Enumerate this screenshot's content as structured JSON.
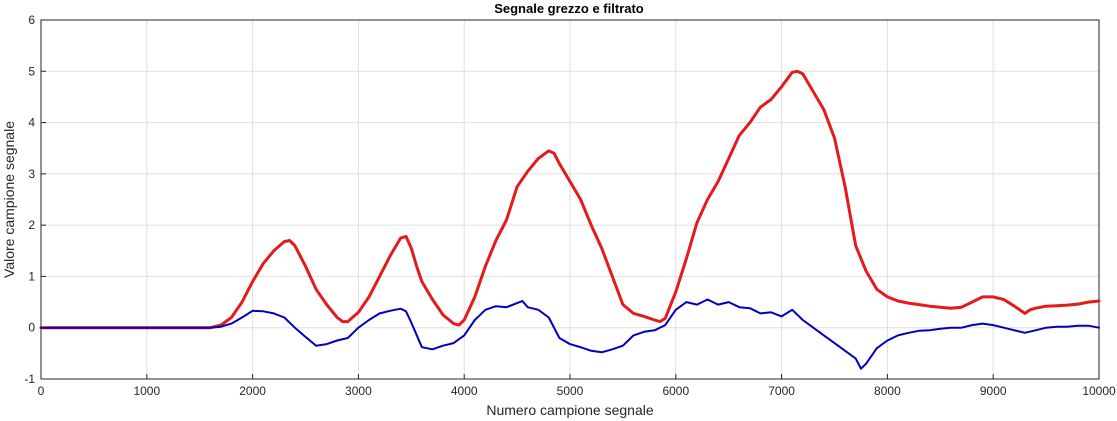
{
  "chart_data": {
    "type": "line",
    "title": "Segnale grezzo e filtrato",
    "xlabel": "Numero campione segnale",
    "ylabel": "Valore campione segnale",
    "xlim": [
      0,
      10000
    ],
    "ylim": [
      -1,
      6
    ],
    "xticks": [
      0,
      1000,
      2000,
      3000,
      4000,
      5000,
      6000,
      7000,
      8000,
      9000,
      10000
    ],
    "yticks": [
      -1,
      0,
      1,
      2,
      3,
      4,
      5,
      6
    ],
    "grid": true,
    "legend": "none",
    "series": [
      {
        "color": "#e41a1c",
        "x": [
          0,
          1600,
          1700,
          1800,
          1900,
          2000,
          2100,
          2200,
          2300,
          2350,
          2400,
          2500,
          2600,
          2700,
          2800,
          2850,
          2900,
          3000,
          3100,
          3200,
          3300,
          3400,
          3450,
          3500,
          3550,
          3600,
          3700,
          3800,
          3900,
          3950,
          4000,
          4100,
          4200,
          4300,
          4400,
          4500,
          4600,
          4700,
          4800,
          4850,
          4900,
          5000,
          5100,
          5200,
          5300,
          5400,
          5500,
          5600,
          5700,
          5800,
          5850,
          5900,
          6000,
          6100,
          6200,
          6300,
          6400,
          6500,
          6600,
          6700,
          6800,
          6900,
          7000,
          7100,
          7150,
          7200,
          7300,
          7400,
          7500,
          7600,
          7700,
          7800,
          7900,
          8000,
          8100,
          8200,
          8300,
          8400,
          8500,
          8600,
          8700,
          8800,
          8900,
          9000,
          9100,
          9200,
          9300,
          9350,
          9400,
          9500,
          9600,
          9700,
          9800,
          9900,
          10000
        ],
        "values": [
          0,
          0,
          0.05,
          0.2,
          0.5,
          0.9,
          1.25,
          1.5,
          1.68,
          1.7,
          1.6,
          1.2,
          0.75,
          0.45,
          0.2,
          0.12,
          0.12,
          0.3,
          0.6,
          1.0,
          1.4,
          1.75,
          1.78,
          1.55,
          1.2,
          0.9,
          0.55,
          0.25,
          0.08,
          0.05,
          0.15,
          0.6,
          1.2,
          1.7,
          2.1,
          2.75,
          3.05,
          3.3,
          3.45,
          3.4,
          3.2,
          2.85,
          2.5,
          2.0,
          1.55,
          1.0,
          0.45,
          0.28,
          0.22,
          0.15,
          0.12,
          0.18,
          0.7,
          1.35,
          2.05,
          2.5,
          2.85,
          3.3,
          3.75,
          4.0,
          4.3,
          4.45,
          4.7,
          4.98,
          5.0,
          4.95,
          4.6,
          4.25,
          3.7,
          2.75,
          1.6,
          1.1,
          0.75,
          0.6,
          0.52,
          0.48,
          0.45,
          0.42,
          0.4,
          0.38,
          0.4,
          0.5,
          0.6,
          0.6,
          0.55,
          0.42,
          0.28,
          0.35,
          0.38,
          0.42,
          0.43,
          0.44,
          0.46,
          0.5,
          0.52
        ]
      },
      {
        "color": "#0000bf",
        "x": [
          0,
          1600,
          1700,
          1800,
          1900,
          2000,
          2100,
          2200,
          2300,
          2400,
          2500,
          2600,
          2700,
          2800,
          2900,
          3000,
          3100,
          3200,
          3300,
          3400,
          3450,
          3500,
          3600,
          3700,
          3800,
          3900,
          4000,
          4100,
          4200,
          4300,
          4400,
          4500,
          4550,
          4600,
          4700,
          4800,
          4900,
          5000,
          5100,
          5200,
          5300,
          5400,
          5500,
          5600,
          5700,
          5800,
          5900,
          6000,
          6100,
          6200,
          6300,
          6400,
          6500,
          6600,
          6700,
          6800,
          6900,
          7000,
          7100,
          7200,
          7300,
          7400,
          7500,
          7600,
          7700,
          7750,
          7800,
          7900,
          8000,
          8100,
          8200,
          8300,
          8400,
          8500,
          8600,
          8700,
          8800,
          8900,
          9000,
          9100,
          9200,
          9300,
          9400,
          9500,
          9600,
          9700,
          9800,
          9900,
          10000
        ],
        "values": [
          0,
          0,
          0.02,
          0.08,
          0.2,
          0.33,
          0.32,
          0.28,
          0.2,
          0.0,
          -0.18,
          -0.35,
          -0.32,
          -0.25,
          -0.2,
          0.0,
          0.15,
          0.28,
          0.33,
          0.37,
          0.32,
          0.1,
          -0.38,
          -0.42,
          -0.35,
          -0.3,
          -0.15,
          0.15,
          0.35,
          0.42,
          0.4,
          0.48,
          0.52,
          0.4,
          0.35,
          0.2,
          -0.2,
          -0.32,
          -0.38,
          -0.45,
          -0.48,
          -0.42,
          -0.35,
          -0.15,
          -0.08,
          -0.05,
          0.05,
          0.35,
          0.5,
          0.45,
          0.55,
          0.45,
          0.5,
          0.4,
          0.38,
          0.28,
          0.3,
          0.22,
          0.35,
          0.15,
          0.0,
          -0.15,
          -0.3,
          -0.45,
          -0.6,
          -0.8,
          -0.7,
          -0.4,
          -0.25,
          -0.15,
          -0.1,
          -0.06,
          -0.05,
          -0.02,
          0.0,
          0.0,
          0.05,
          0.08,
          0.05,
          0.0,
          -0.05,
          -0.1,
          -0.05,
          0.0,
          0.02,
          0.02,
          0.04,
          0.04,
          0.0
        ]
      }
    ]
  }
}
